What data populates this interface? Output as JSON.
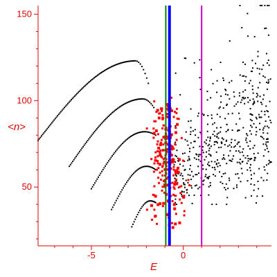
{
  "chart_data": {
    "type": "scatter",
    "title": "",
    "xlabel": "E",
    "ylabel": "<n>",
    "xlim": [
      -7.9,
      4.8
    ],
    "ylim": [
      16,
      155
    ],
    "x_ticks": [
      -5,
      0
    ],
    "y_ticks": [
      50,
      100,
      150
    ],
    "x_tick_labels": [
      "-5",
      "0"
    ],
    "y_tick_labels": [
      "50",
      "100",
      "150"
    ],
    "grid": false,
    "axis_color": "#e00000",
    "vertical_lines": [
      {
        "x": -0.95,
        "color": "#008000"
      },
      {
        "x": -0.75,
        "color": "#0000ff"
      },
      {
        "x": 1.0,
        "color": "#cc00cc"
      }
    ],
    "series": [
      {
        "color": "#000000",
        "marker": "dot",
        "bands": [
          {
            "from": [
              -7.9,
              77
            ],
            "peak": [
              -2.6,
              123
            ],
            "to": [
              -1.9,
              110
            ]
          },
          {
            "from": [
              -6.2,
              62
            ],
            "peak": [
              -2.2,
              101
            ],
            "to": [
              -1.6,
              96
            ]
          },
          {
            "from": [
              -5.0,
              49
            ],
            "peak": [
              -2.1,
              82
            ],
            "to": [
              -1.5,
              80
            ]
          },
          {
            "from": [
              -3.9,
              37
            ],
            "peak": [
              -2.0,
              62
            ],
            "to": [
              -1.5,
              60
            ]
          },
          {
            "from": [
              -2.8,
              27
            ],
            "peak": [
              -1.8,
              42
            ],
            "to": [
              -1.5,
              41
            ]
          }
        ],
        "cloud": {
          "x_range": [
            -0.5,
            4.8
          ],
          "y_range": [
            40,
            155
          ],
          "trend": "increasing"
        }
      },
      {
        "color": "#ff0000",
        "marker": "square",
        "cloud": {
          "x_range": [
            -2.0,
            0.8
          ],
          "y_range": [
            24,
            102
          ],
          "center": [
            -0.9,
            68
          ]
        }
      }
    ]
  }
}
